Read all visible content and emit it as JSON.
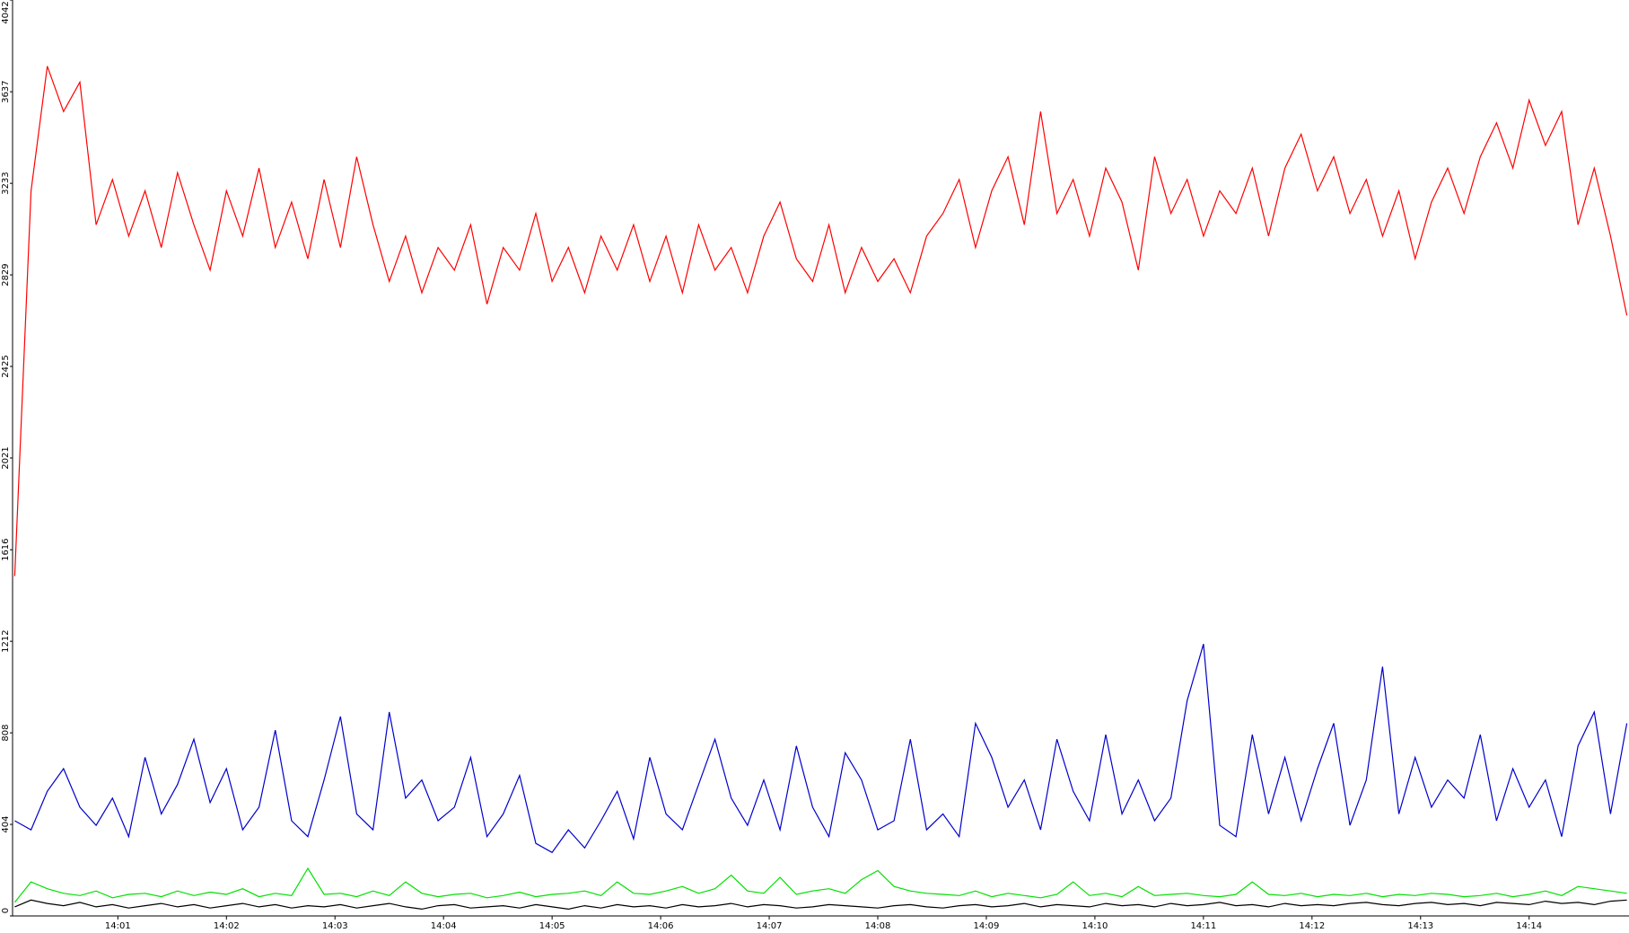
{
  "chart_data": {
    "type": "line",
    "x": [
      0.05,
      0.2,
      0.35,
      0.5,
      0.65,
      0.8,
      0.95,
      1.1,
      1.25,
      1.4,
      1.55,
      1.7,
      1.85,
      2.0,
      2.15,
      2.3,
      2.45,
      2.6,
      2.75,
      2.9,
      3.05,
      3.2,
      3.35,
      3.5,
      3.65,
      3.8,
      3.95,
      4.1,
      4.25,
      4.4,
      4.55,
      4.7,
      4.85,
      5.0,
      5.15,
      5.3,
      5.45,
      5.6,
      5.75,
      5.9,
      6.05,
      6.2,
      6.35,
      6.5,
      6.65,
      6.8,
      6.95,
      7.1,
      7.25,
      7.4,
      7.55,
      7.7,
      7.85,
      8.0,
      8.15,
      8.3,
      8.45,
      8.6,
      8.75,
      8.9,
      9.05,
      9.2,
      9.35,
      9.5,
      9.65,
      9.8,
      9.95,
      10.1,
      10.25,
      10.4,
      10.55,
      10.7,
      10.85,
      11.0,
      11.15,
      11.3,
      11.45,
      11.6,
      11.75,
      11.9,
      12.05,
      12.2,
      12.35,
      12.5,
      12.65,
      12.8,
      12.95,
      13.1,
      13.25,
      13.4,
      13.55,
      13.7,
      13.85,
      14.0,
      14.15,
      14.3,
      14.45,
      14.6,
      14.75,
      14.9
    ],
    "series": [
      {
        "color": "#ff0000",
        "values": [
          1500,
          3200,
          3750,
          3550,
          3680,
          3050,
          3250,
          3000,
          3200,
          2950,
          3280,
          3050,
          2850,
          3200,
          3000,
          3300,
          2950,
          3150,
          2900,
          3250,
          2950,
          3350,
          3050,
          2800,
          3000,
          2750,
          2950,
          2850,
          3050,
          2700,
          2950,
          2850,
          3100,
          2800,
          2950,
          2750,
          3000,
          2850,
          3050,
          2800,
          3000,
          2750,
          3050,
          2850,
          2950,
          2750,
          3000,
          3150,
          2900,
          2800,
          3050,
          2750,
          2950,
          2800,
          2900,
          2750,
          3000,
          3100,
          3250,
          2950,
          3200,
          3350,
          3050,
          3550,
          3100,
          3250,
          3000,
          3300,
          3150,
          2850,
          3350,
          3100,
          3250,
          3000,
          3200,
          3100,
          3300,
          3000,
          3300,
          3450,
          3200,
          3350,
          3100,
          3250,
          3000,
          3200,
          2900,
          3150,
          3300,
          3100,
          3350,
          3500,
          3300,
          3600,
          3400,
          3550,
          3050,
          3300,
          3000,
          2650
        ]
      },
      {
        "color": "#0000cc",
        "values": [
          420,
          380,
          550,
          650,
          480,
          400,
          520,
          350,
          700,
          450,
          580,
          780,
          500,
          650,
          380,
          480,
          820,
          420,
          350,
          600,
          880,
          450,
          380,
          900,
          520,
          600,
          420,
          480,
          700,
          350,
          450,
          620,
          320,
          280,
          380,
          300,
          420,
          550,
          340,
          700,
          450,
          380,
          580,
          780,
          520,
          400,
          600,
          380,
          750,
          480,
          350,
          720,
          600,
          380,
          420,
          780,
          380,
          450,
          350,
          850,
          700,
          480,
          600,
          380,
          780,
          550,
          420,
          800,
          450,
          600,
          420,
          520,
          950,
          1200,
          400,
          350,
          800,
          450,
          700,
          420,
          650,
          850,
          400,
          600,
          1100,
          450,
          700,
          480,
          600,
          520,
          800,
          420,
          650,
          480,
          600,
          350,
          750,
          900,
          450,
          850
        ]
      },
      {
        "color": "#00e000",
        "values": [
          60,
          150,
          120,
          100,
          90,
          110,
          80,
          95,
          100,
          85,
          110,
          90,
          105,
          95,
          120,
          85,
          100,
          90,
          210,
          95,
          100,
          85,
          110,
          90,
          150,
          100,
          85,
          95,
          100,
          80,
          90,
          105,
          85,
          95,
          100,
          110,
          90,
          150,
          100,
          95,
          110,
          130,
          100,
          120,
          180,
          110,
          100,
          170,
          95,
          110,
          120,
          100,
          160,
          200,
          130,
          110,
          100,
          95,
          90,
          110,
          85,
          100,
          90,
          80,
          95,
          150,
          90,
          100,
          85,
          130,
          90,
          95,
          100,
          90,
          85,
          95,
          150,
          95,
          90,
          100,
          85,
          95,
          90,
          100,
          85,
          95,
          90,
          100,
          95,
          85,
          90,
          100,
          85,
          95,
          110,
          90,
          130,
          120,
          110,
          100
        ]
      },
      {
        "color": "#000000",
        "values": [
          40,
          70,
          55,
          45,
          60,
          40,
          50,
          35,
          45,
          55,
          40,
          50,
          35,
          45,
          55,
          40,
          50,
          35,
          45,
          40,
          50,
          35,
          45,
          55,
          40,
          30,
          45,
          50,
          35,
          40,
          45,
          35,
          50,
          40,
          30,
          45,
          35,
          50,
          40,
          45,
          35,
          50,
          40,
          45,
          55,
          40,
          50,
          45,
          35,
          40,
          50,
          45,
          40,
          35,
          45,
          50,
          40,
          35,
          45,
          50,
          40,
          45,
          55,
          40,
          50,
          45,
          40,
          55,
          45,
          50,
          40,
          55,
          45,
          50,
          60,
          45,
          50,
          40,
          55,
          45,
          50,
          45,
          55,
          60,
          50,
          45,
          55,
          60,
          50,
          55,
          45,
          60,
          55,
          50,
          65,
          55,
          60,
          50,
          65,
          70
        ]
      }
    ],
    "xlim": [
      0.03,
      14.92
    ],
    "xticks": [
      {
        "value": 1,
        "label": "14:01"
      },
      {
        "value": 2,
        "label": "14:02"
      },
      {
        "value": 3,
        "label": "14:03"
      },
      {
        "value": 4,
        "label": "14:04"
      },
      {
        "value": 5,
        "label": "14:05"
      },
      {
        "value": 6,
        "label": "14:06"
      },
      {
        "value": 7,
        "label": "14:07"
      },
      {
        "value": 8,
        "label": "14:08"
      },
      {
        "value": 9,
        "label": "14:09"
      },
      {
        "value": 10,
        "label": "14:10"
      },
      {
        "value": 11,
        "label": "14:11"
      },
      {
        "value": 12,
        "label": "14:12"
      },
      {
        "value": 13,
        "label": "14:13"
      },
      {
        "value": 14,
        "label": "14:14"
      }
    ],
    "ylim": [
      0,
      4042
    ],
    "yticks": [
      0,
      404,
      808,
      1212,
      1616,
      2021,
      2425,
      2829,
      3233,
      3637,
      4042
    ]
  }
}
